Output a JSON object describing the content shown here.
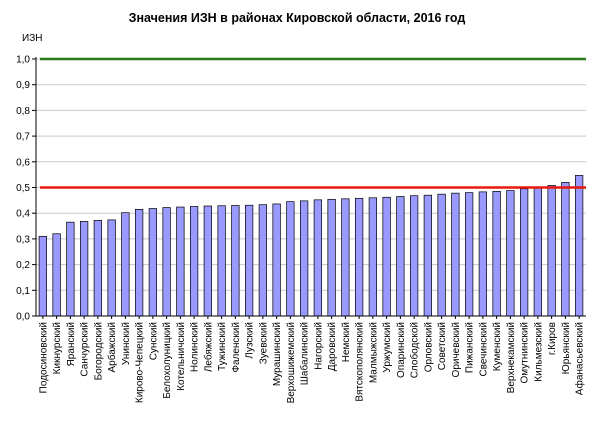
{
  "chart_data": {
    "type": "bar",
    "title": "Значения ИЗН в районах Кировской области, 2016 год",
    "ylabel": "ИЗН",
    "xlabel": "",
    "ylim": [
      0,
      1.0
    ],
    "yticks": [
      "0,0",
      "0,1",
      "0,2",
      "0,3",
      "0,4",
      "0,5",
      "0,6",
      "0,7",
      "0,8",
      "0,9",
      "1,0"
    ],
    "categories": [
      "Подосиновский",
      "Кикнурский",
      "Яранский",
      "Санчурский",
      "Богородский",
      "Арбажский",
      "Унинский",
      "Кирово-Чепецкий",
      "Сунский",
      "Белохолуницкий",
      "Котельничский",
      "Нолинский",
      "Лебяжский",
      "Тужинский",
      "Фаленский",
      "Лузский",
      "Зуевский",
      "Мурашинский",
      "Верхошижемский",
      "Шабалинский",
      "Нагорский",
      "Даровский",
      "Немский",
      "Вятскополянский",
      "Малмыжский",
      "Уржумский",
      "Опаринский",
      "Слободской",
      "Орловский",
      "Советский",
      "Оричевский",
      "Пижанский",
      "Свечинский",
      "Куменский",
      "Верхнекамский",
      "Омутнинский",
      "Кильмезский",
      "г.Киров",
      "Юрьянский",
      "Афанасьевский"
    ],
    "values": [
      0.31,
      0.32,
      0.365,
      0.368,
      0.372,
      0.374,
      0.402,
      0.415,
      0.418,
      0.422,
      0.424,
      0.426,
      0.428,
      0.429,
      0.43,
      0.431,
      0.433,
      0.436,
      0.445,
      0.448,
      0.452,
      0.454,
      0.456,
      0.458,
      0.46,
      0.462,
      0.465,
      0.468,
      0.47,
      0.474,
      0.478,
      0.48,
      0.483,
      0.485,
      0.488,
      0.495,
      0.5,
      0.508,
      0.52,
      0.547
    ],
    "reference_lines": [
      {
        "value": 1.0,
        "color": "#2a7a1a"
      },
      {
        "value": 0.5,
        "color": "#e8180c"
      }
    ],
    "bar_color": "#9999ff",
    "bar_edge_color": "#000000",
    "grid": true,
    "grid_color": "#c8c8c8"
  }
}
